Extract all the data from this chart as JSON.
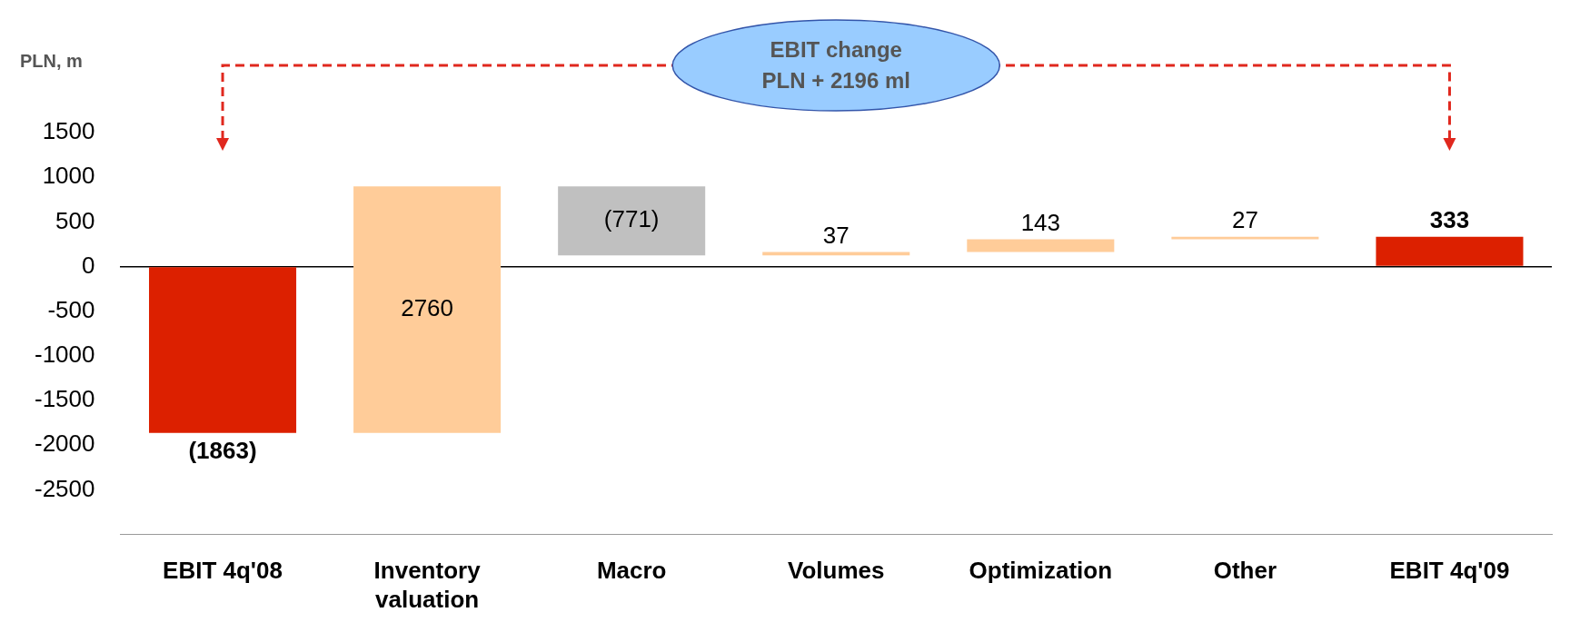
{
  "chart_data": {
    "type": "bar",
    "ylabel": "PLN, m",
    "categories": [
      "EBIT 4q'08",
      "Inventory valuation",
      "Macro",
      "Volumes",
      "Optimization",
      "Other",
      "EBIT 4q'09"
    ],
    "values": [
      -1863,
      2760,
      -771,
      37,
      143,
      27,
      333
    ],
    "base": [
      0,
      -1863,
      897,
      126,
      163,
      306,
      0
    ],
    "colors": [
      "#dc2000",
      "#ffcc99",
      "#c0c0c0",
      "#ffcc99",
      "#ffcc99",
      "#ffcc99",
      "#dc2000"
    ],
    "value_labels": [
      "(1863)",
      "2760",
      "(771)",
      "37",
      "143",
      "27",
      "333"
    ],
    "ylim": [
      -3000,
      1500
    ],
    "yticks": [
      -2500,
      -2000,
      -1500,
      -1000,
      -500,
      0,
      500,
      1000,
      1500
    ],
    "annotations": [
      "EBIT change\nPLN + 2196 ml"
    ]
  }
}
